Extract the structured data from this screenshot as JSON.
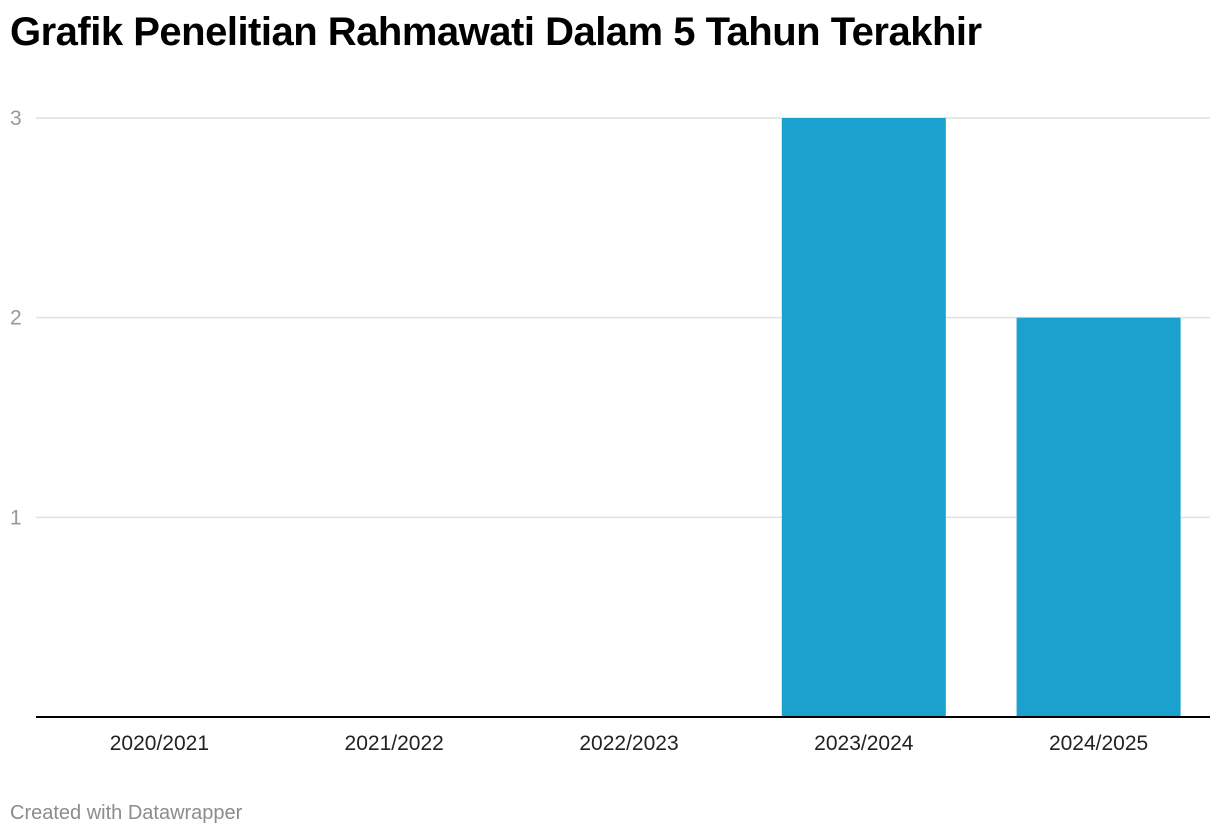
{
  "chart_data": {
    "type": "bar",
    "title": "Grafik Penelitian Rahmawati Dalam 5 Tahun Terakhir",
    "xlabel": "",
    "ylabel": "",
    "categories": [
      "2020/2021",
      "2021/2022",
      "2022/2023",
      "2023/2024",
      "2024/2025"
    ],
    "values": [
      0,
      0,
      0,
      3,
      2
    ],
    "ylim": [
      0,
      3
    ],
    "yticks": [
      1,
      2,
      3
    ],
    "grid": true,
    "legend": "none",
    "bar_color": "#1aa1cd"
  },
  "footer": {
    "credit": "Created with Datawrapper"
  }
}
